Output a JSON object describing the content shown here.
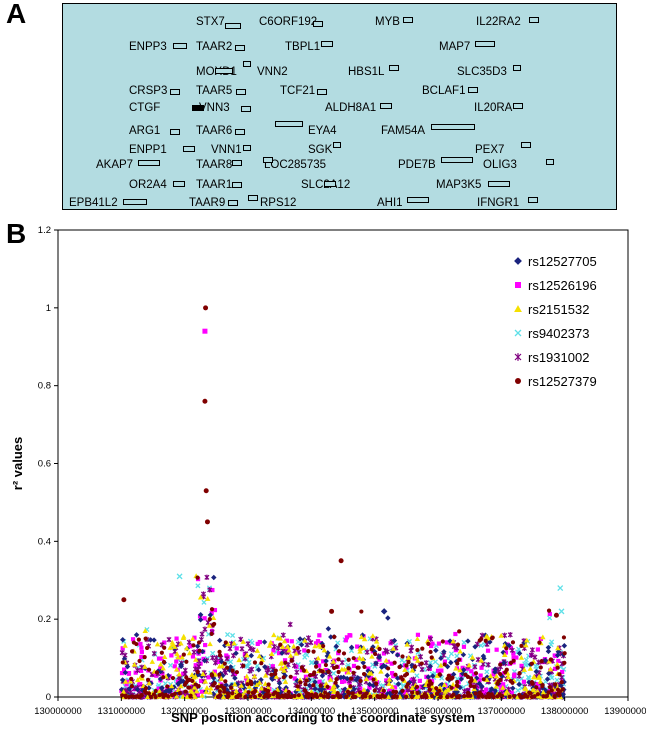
{
  "panel_a_label": "A",
  "panel_b_label": "B",
  "genes": [
    {
      "name": "STX7"
    },
    {
      "name": "C6ORF192"
    },
    {
      "name": "MYB"
    },
    {
      "name": "IL22RA2"
    },
    {
      "name": "ENPP3"
    },
    {
      "name": "TAAR2"
    },
    {
      "name": "TBPL1"
    },
    {
      "name": "MAP7"
    },
    {
      "name": "MOXD1"
    },
    {
      "name": "VNN2"
    },
    {
      "name": "HBS1L"
    },
    {
      "name": "SLC35D3"
    },
    {
      "name": "CRSP3"
    },
    {
      "name": "TAAR5"
    },
    {
      "name": "TCF21"
    },
    {
      "name": "BCLAF1"
    },
    {
      "name": "CTGF"
    },
    {
      "name": "VNN3"
    },
    {
      "name": "ALDH8A1"
    },
    {
      "name": "IL20RA"
    },
    {
      "name": "ARG1"
    },
    {
      "name": "TAAR6"
    },
    {
      "name": "EYA4"
    },
    {
      "name": "FAM54A"
    },
    {
      "name": "ENPP1"
    },
    {
      "name": "VNN1"
    },
    {
      "name": "SGK"
    },
    {
      "name": "PEX7"
    },
    {
      "name": "AKAP7"
    },
    {
      "name": "TAAR8"
    },
    {
      "name": "LOC285735"
    },
    {
      "name": "PDE7B"
    },
    {
      "name": "OLIG3"
    },
    {
      "name": "OR2A4"
    },
    {
      "name": "TAAR1"
    },
    {
      "name": "SLC2A12"
    },
    {
      "name": "MAP3K5"
    },
    {
      "name": "EPB41L2"
    },
    {
      "name": "TAAR9"
    },
    {
      "name": "RPS12"
    },
    {
      "name": "AHI1"
    },
    {
      "name": "IFNGR1"
    }
  ],
  "chart_data": {
    "type": "scatter",
    "xlabel": "SNP position according to the coordinate system",
    "ylabel": "r² values",
    "xlim": [
      130000000,
      139000000
    ],
    "ylim": [
      0,
      1.2
    ],
    "x_ticks": [
      "130000000",
      "131000000",
      "132000000",
      "133000000",
      "134000000",
      "135000000",
      "136000000",
      "137000000",
      "138000000",
      "139000000"
    ],
    "y_ticks": [
      "0",
      "0.2",
      "0.4",
      "0.6",
      "0.8",
      "1",
      "1.2"
    ],
    "legend_position": "top-right",
    "series": [
      {
        "name": "rs12527705",
        "color": "#1a237e",
        "marker": "diamond"
      },
      {
        "name": "rs12526196",
        "color": "#ff00ff",
        "marker": "square"
      },
      {
        "name": "rs2151532",
        "color": "#f5e000",
        "marker": "triangle"
      },
      {
        "name": "rs9402373",
        "color": "#5ee0e8",
        "marker": "x"
      },
      {
        "name": "rs1931002",
        "color": "#800080",
        "marker": "asterisk"
      },
      {
        "name": "rs12527379",
        "color": "#800000",
        "marker": "circle"
      }
    ],
    "highlight_points": [
      {
        "series": "rs12527379",
        "x": 132330000,
        "y": 1.0
      },
      {
        "series": "rs12526196",
        "x": 132320000,
        "y": 0.94
      },
      {
        "series": "rs12527379",
        "x": 132320000,
        "y": 0.76
      },
      {
        "series": "rs12527379",
        "x": 132340000,
        "y": 0.53
      },
      {
        "series": "rs12527379",
        "x": 132360000,
        "y": 0.45
      },
      {
        "series": "rs12527379",
        "x": 134470000,
        "y": 0.35
      },
      {
        "series": "rs9402373",
        "x": 131920000,
        "y": 0.31
      },
      {
        "series": "rs12527379",
        "x": 131040000,
        "y": 0.25
      },
      {
        "series": "rs12527705",
        "x": 135150000,
        "y": 0.22
      },
      {
        "series": "rs9402373",
        "x": 137930000,
        "y": 0.28
      },
      {
        "series": "rs9402373",
        "x": 137950000,
        "y": 0.22
      },
      {
        "series": "rs12527379",
        "x": 137870000,
        "y": 0.21
      },
      {
        "series": "rs12527379",
        "x": 134320000,
        "y": 0.22
      }
    ],
    "data_range": [
      131000000,
      138000000
    ],
    "points_per_series": 420
  }
}
